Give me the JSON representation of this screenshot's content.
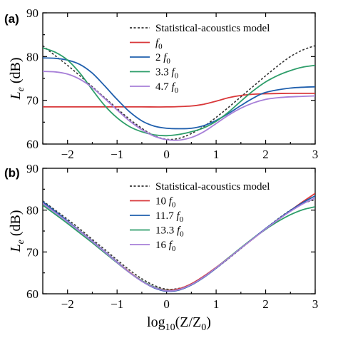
{
  "chart_data": [
    {
      "type": "line",
      "panel_label": "(a)",
      "xlabel_parts": [
        "log",
        "10",
        "(Z/Z",
        "0",
        ")"
      ],
      "ylabel_parts": [
        "L",
        "e",
        " (dB)"
      ],
      "xlim": [
        -2.5,
        3
      ],
      "ylim": [
        60,
        90
      ],
      "xticks": [
        -2,
        -1,
        0,
        1,
        2,
        3
      ],
      "xtick_labels": [
        "−2",
        "−1",
        "0",
        "1",
        "2",
        "3"
      ],
      "yticks": [
        60,
        70,
        80,
        90
      ],
      "ytick_labels": [
        "60",
        "70",
        "80",
        "90"
      ],
      "legend_position": "top-right",
      "series": [
        {
          "name": "Statistical-acoustics model",
          "legend_parts": [
            "Statistical-acoustics model"
          ],
          "color": "#333333",
          "dashed": true,
          "x": [
            -2.5,
            -2.25,
            -2,
            -1.75,
            -1.5,
            -1.25,
            -1,
            -0.75,
            -0.5,
            -0.25,
            0,
            0.25,
            0.5,
            0.75,
            1,
            1.25,
            1.5,
            1.75,
            2,
            2.25,
            2.5,
            2.75,
            3
          ],
          "y": [
            82.5,
            80.2,
            78.0,
            75.6,
            73.1,
            70.6,
            68.1,
            65.7,
            63.6,
            61.9,
            61.1,
            61.3,
            62.4,
            64.0,
            66.1,
            68.4,
            70.8,
            73.2,
            75.6,
            77.9,
            80.0,
            81.5,
            82.5
          ]
        },
        {
          "name": "f0",
          "legend_parts": [
            "",
            "f",
            "0"
          ],
          "color": "#d9383a",
          "dashed": false,
          "x": [
            -2.5,
            -2,
            -1.5,
            -1,
            -0.5,
            0,
            0.5,
            0.75,
            1,
            1.25,
            1.5,
            1.75,
            2,
            2.5,
            3
          ],
          "y": [
            68.5,
            68.5,
            68.5,
            68.5,
            68.5,
            68.5,
            68.7,
            69.1,
            69.8,
            70.6,
            71.1,
            71.4,
            71.5,
            71.6,
            71.6
          ]
        },
        {
          "name": "2 f0",
          "legend_parts": [
            "2 ",
            "f",
            "0"
          ],
          "color": "#1f5fad",
          "dashed": false,
          "x": [
            -2.5,
            -2.25,
            -2,
            -1.75,
            -1.5,
            -1.25,
            -1,
            -0.75,
            -0.5,
            -0.25,
            0,
            0.25,
            0.5,
            0.75,
            1,
            1.25,
            1.5,
            1.75,
            2,
            2.5,
            3
          ],
          "y": [
            79.7,
            79.6,
            79.2,
            78.2,
            76.2,
            73.3,
            70.2,
            67.4,
            65.3,
            64.1,
            63.6,
            63.5,
            63.6,
            64.2,
            65.4,
            67.0,
            68.8,
            70.5,
            71.8,
            72.8,
            73.1
          ]
        },
        {
          "name": "3.3 f0",
          "legend_parts": [
            "3.3 ",
            "f",
            "0"
          ],
          "color": "#2e9e6a",
          "dashed": false,
          "x": [
            -2.5,
            -2.25,
            -2,
            -1.75,
            -1.5,
            -1.25,
            -1,
            -0.75,
            -0.5,
            -0.25,
            0,
            0.25,
            0.5,
            0.75,
            1,
            1.25,
            1.5,
            1.75,
            2,
            2.25,
            2.5,
            2.75,
            3
          ],
          "y": [
            82.0,
            81.0,
            79.2,
            76.2,
            72.4,
            68.8,
            66.0,
            64.0,
            62.8,
            62.1,
            61.9,
            62.2,
            62.8,
            63.7,
            65.2,
            67.3,
            69.8,
            72.2,
            74.2,
            75.7,
            76.8,
            77.6,
            78.0
          ]
        },
        {
          "name": "4.7 f0",
          "legend_parts": [
            "4.7 ",
            "f",
            "0"
          ],
          "color": "#a77fd8",
          "dashed": false,
          "x": [
            -2.5,
            -2.25,
            -2,
            -1.75,
            -1.5,
            -1.25,
            -1,
            -0.75,
            -0.5,
            -0.25,
            0,
            0.25,
            0.5,
            0.75,
            1,
            1.25,
            1.5,
            1.75,
            2,
            2.25,
            2.5,
            2.75,
            3
          ],
          "y": [
            76.6,
            76.5,
            76.0,
            74.8,
            72.9,
            70.4,
            67.8,
            65.3,
            63.3,
            61.8,
            61.0,
            60.9,
            61.5,
            62.8,
            64.7,
            66.6,
            68.2,
            69.4,
            70.2,
            70.6,
            70.8,
            70.9,
            71.0
          ]
        }
      ]
    },
    {
      "type": "line",
      "panel_label": "(b)",
      "xlabel_parts": [
        "log",
        "10",
        "(Z/Z",
        "0",
        ")"
      ],
      "ylabel_parts": [
        "L",
        "e",
        " (dB)"
      ],
      "xlim": [
        -2.5,
        3
      ],
      "ylim": [
        60,
        90
      ],
      "xticks": [
        -2,
        -1,
        0,
        1,
        2,
        3
      ],
      "xtick_labels": [
        "−2",
        "−1",
        "0",
        "1",
        "2",
        "3"
      ],
      "yticks": [
        60,
        70,
        80,
        90
      ],
      "ytick_labels": [
        "60",
        "70",
        "80",
        "90"
      ],
      "legend_position": "top-right",
      "series": [
        {
          "name": "Statistical-acoustics model",
          "legend_parts": [
            "Statistical-acoustics model"
          ],
          "color": "#333333",
          "dashed": true,
          "x": [
            -2.5,
            -2.25,
            -2,
            -1.75,
            -1.5,
            -1.25,
            -1,
            -0.75,
            -0.5,
            -0.25,
            0,
            0.25,
            0.5,
            0.75,
            1,
            1.25,
            1.5,
            1.75,
            2,
            2.25,
            2.5,
            2.75,
            3
          ],
          "y": [
            82.2,
            80.0,
            77.8,
            75.5,
            73.0,
            70.6,
            68.1,
            65.7,
            63.6,
            62.0,
            61.1,
            61.3,
            62.3,
            64.0,
            66.1,
            68.4,
            70.8,
            73.2,
            75.6,
            77.9,
            80.0,
            81.6,
            82.5
          ]
        },
        {
          "name": "10 f0",
          "legend_parts": [
            "10 ",
            "f",
            "0"
          ],
          "color": "#d9383a",
          "dashed": false,
          "x": [
            -2.5,
            -2.25,
            -2,
            -1.75,
            -1.5,
            -1.25,
            -1,
            -0.75,
            -0.5,
            -0.25,
            0,
            0.25,
            0.5,
            0.75,
            1,
            1.25,
            1.5,
            1.75,
            2,
            2.25,
            2.5,
            2.75,
            3
          ],
          "y": [
            81.8,
            79.5,
            77.3,
            75.0,
            72.6,
            70.1,
            67.6,
            65.2,
            63.1,
            61.6,
            60.9,
            61.2,
            62.4,
            64.2,
            66.3,
            68.6,
            70.9,
            73.2,
            75.5,
            77.7,
            79.9,
            82.0,
            84.0
          ]
        },
        {
          "name": "11.7 f0",
          "legend_parts": [
            "11.7 ",
            "f",
            "0"
          ],
          "color": "#1f5fad",
          "dashed": false,
          "x": [
            -2.5,
            -2.25,
            -2,
            -1.75,
            -1.5,
            -1.25,
            -1,
            -0.75,
            -0.5,
            -0.25,
            0,
            0.25,
            0.5,
            0.75,
            1,
            1.25,
            1.5,
            1.75,
            2,
            2.25,
            2.5,
            2.75,
            3
          ],
          "y": [
            82.0,
            79.7,
            77.4,
            75.0,
            72.6,
            70.1,
            67.6,
            65.1,
            63.0,
            61.4,
            60.6,
            60.9,
            62.1,
            63.9,
            66.1,
            68.5,
            70.9,
            73.3,
            75.6,
            77.8,
            79.9,
            81.8,
            83.4
          ]
        },
        {
          "name": "13.3 f0",
          "legend_parts": [
            "13.3 ",
            "f",
            "0"
          ],
          "color": "#2e9e6a",
          "dashed": false,
          "x": [
            -2.5,
            -2.25,
            -2,
            -1.75,
            -1.5,
            -1.25,
            -1,
            -0.75,
            -0.5,
            -0.25,
            0,
            0.25,
            0.5,
            0.75,
            1,
            1.25,
            1.5,
            1.75,
            2,
            2.25,
            2.5,
            2.75,
            3
          ],
          "y": [
            81.2,
            79.0,
            76.8,
            74.5,
            72.2,
            69.8,
            67.4,
            65.1,
            63.1,
            61.6,
            60.8,
            61.0,
            62.2,
            64.0,
            66.2,
            68.6,
            71.0,
            73.3,
            75.4,
            77.3,
            78.9,
            80.1,
            80.8
          ]
        },
        {
          "name": "16 f0",
          "legend_parts": [
            "16 ",
            "f",
            "0"
          ],
          "color": "#a77fd8",
          "dashed": false,
          "x": [
            -2.5,
            -2.25,
            -2,
            -1.75,
            -1.5,
            -1.25,
            -1,
            -0.75,
            -0.5,
            -0.25,
            0,
            0.25,
            0.5,
            0.75,
            1,
            1.25,
            1.5,
            1.75,
            2,
            2.25,
            2.5,
            2.75,
            3
          ],
          "y": [
            81.6,
            79.4,
            77.2,
            74.9,
            72.5,
            70.0,
            67.5,
            65.1,
            63.0,
            61.5,
            60.7,
            61.0,
            62.2,
            64.0,
            66.2,
            68.5,
            70.9,
            73.2,
            75.5,
            77.7,
            79.7,
            81.5,
            82.9
          ]
        }
      ]
    }
  ]
}
